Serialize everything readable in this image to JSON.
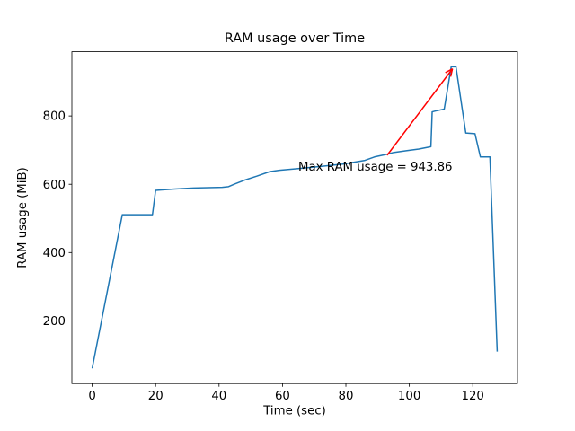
{
  "chart_data": {
    "type": "line",
    "title": "RAM usage over Time",
    "xlabel": "Time (sec)",
    "ylabel": "RAM usage (MiB)",
    "line_color": "#1f77b4",
    "background_color": "#ffffff",
    "grid": false,
    "legend": false,
    "xlim": [
      -6.4,
      134.1
    ],
    "ylim": [
      16.5,
      988
    ],
    "xticks": [
      0,
      20,
      40,
      60,
      80,
      100,
      120
    ],
    "yticks": [
      200,
      400,
      600,
      800
    ],
    "x": [
      0,
      9.5,
      19,
      20,
      26,
      32,
      41,
      43,
      45,
      48,
      52,
      56,
      59,
      65,
      72,
      79,
      86,
      89,
      93,
      95,
      99,
      103,
      106.8,
      107.2,
      108,
      111,
      113.2,
      114.7,
      117.8,
      120.7,
      122.4,
      125.4,
      127.7
    ],
    "y": [
      61,
      511,
      511,
      582,
      586,
      589,
      591,
      593,
      601,
      612,
      624,
      637,
      641,
      646,
      652,
      659,
      670,
      680,
      688,
      693,
      698,
      703,
      710,
      812,
      814,
      820,
      943.86,
      943.86,
      750,
      748,
      680,
      680,
      110
    ],
    "annotation": {
      "text": "Max RAM usage = 943.86",
      "color": "#ff0000",
      "max_value": 943.86,
      "text_pos": [
        65,
        640
      ],
      "arrow_from": [
        93,
        685
      ],
      "arrow_to": [
        113.6,
        938
      ]
    }
  }
}
